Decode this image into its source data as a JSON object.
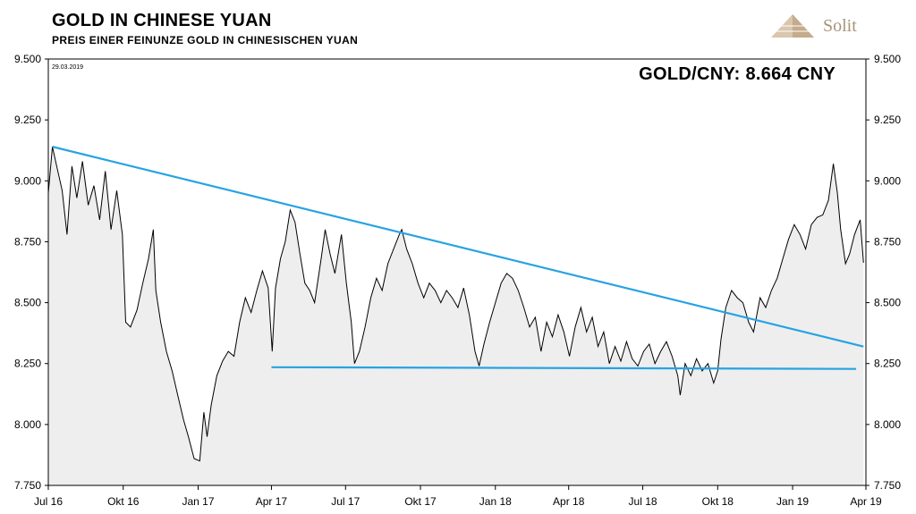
{
  "header": {
    "title": "GOLD IN CHINESE YUAN",
    "subtitle": "PREIS  EINER  FEINUNZE  GOLD IN CHINESISCHEN  YUAN",
    "logo_text": "Solit"
  },
  "colors": {
    "price_line": "#000000",
    "area_fill": "#eeeeee",
    "trend_line": "#27a3e2",
    "logo": "#a8937a"
  },
  "chart_data": {
    "type": "line",
    "date_label": "29.03.2019",
    "annotation": "GOLD/CNY: 8.664 CNY",
    "ylim": [
      7.75,
      9.5
    ],
    "yticks": [
      7.75,
      8.0,
      8.25,
      8.5,
      8.75,
      9.0,
      9.25,
      9.5
    ],
    "ytick_labels": [
      "7.750",
      "8.000",
      "8.250",
      "8.500",
      "8.750",
      "9.000",
      "9.250",
      "9.500"
    ],
    "xticks": [
      "Jul 16",
      "Okt 16",
      "Jan 17",
      "Apr 17",
      "Jul 17",
      "Okt 17",
      "Jan 18",
      "Apr 18",
      "Jul 18",
      "Okt 18",
      "Jan 19",
      "Apr 19"
    ],
    "xlim": [
      "2016-07-01",
      "2019-04-01"
    ],
    "series": [
      {
        "values": [
          [
            "2016-07-01",
            8.95
          ],
          [
            "2016-07-06",
            9.14
          ],
          [
            "2016-07-12",
            9.05
          ],
          [
            "2016-07-18",
            8.96
          ],
          [
            "2016-07-24",
            8.78
          ],
          [
            "2016-07-30",
            9.06
          ],
          [
            "2016-08-05",
            8.93
          ],
          [
            "2016-08-12",
            9.08
          ],
          [
            "2016-08-19",
            8.9
          ],
          [
            "2016-08-26",
            8.98
          ],
          [
            "2016-09-02",
            8.84
          ],
          [
            "2016-09-09",
            9.04
          ],
          [
            "2016-09-16",
            8.8
          ],
          [
            "2016-09-23",
            8.96
          ],
          [
            "2016-09-30",
            8.78
          ],
          [
            "2016-10-04",
            8.42
          ],
          [
            "2016-10-10",
            8.4
          ],
          [
            "2016-10-18",
            8.47
          ],
          [
            "2016-10-25",
            8.58
          ],
          [
            "2016-11-01",
            8.68
          ],
          [
            "2016-11-07",
            8.8
          ],
          [
            "2016-11-10",
            8.55
          ],
          [
            "2016-11-16",
            8.42
          ],
          [
            "2016-11-23",
            8.3
          ],
          [
            "2016-11-30",
            8.22
          ],
          [
            "2016-12-07",
            8.12
          ],
          [
            "2016-12-14",
            8.02
          ],
          [
            "2016-12-20",
            7.95
          ],
          [
            "2016-12-27",
            7.86
          ],
          [
            "2017-01-03",
            7.85
          ],
          [
            "2017-01-08",
            8.05
          ],
          [
            "2017-01-12",
            7.95
          ],
          [
            "2017-01-17",
            8.08
          ],
          [
            "2017-01-24",
            8.2
          ],
          [
            "2017-01-31",
            8.26
          ],
          [
            "2017-02-07",
            8.3
          ],
          [
            "2017-02-14",
            8.28
          ],
          [
            "2017-02-21",
            8.42
          ],
          [
            "2017-02-28",
            8.52
          ],
          [
            "2017-03-07",
            8.46
          ],
          [
            "2017-03-14",
            8.55
          ],
          [
            "2017-03-21",
            8.63
          ],
          [
            "2017-03-28",
            8.56
          ],
          [
            "2017-04-02",
            8.3
          ],
          [
            "2017-04-06",
            8.56
          ],
          [
            "2017-04-12",
            8.68
          ],
          [
            "2017-04-18",
            8.75
          ],
          [
            "2017-04-24",
            8.88
          ],
          [
            "2017-04-30",
            8.83
          ],
          [
            "2017-05-06",
            8.7
          ],
          [
            "2017-05-12",
            8.58
          ],
          [
            "2017-05-18",
            8.55
          ],
          [
            "2017-05-24",
            8.5
          ],
          [
            "2017-06-01",
            8.68
          ],
          [
            "2017-06-06",
            8.8
          ],
          [
            "2017-06-12",
            8.7
          ],
          [
            "2017-06-18",
            8.62
          ],
          [
            "2017-06-26",
            8.78
          ],
          [
            "2017-07-02",
            8.58
          ],
          [
            "2017-07-08",
            8.42
          ],
          [
            "2017-07-12",
            8.25
          ],
          [
            "2017-07-18",
            8.3
          ],
          [
            "2017-07-25",
            8.4
          ],
          [
            "2017-08-01",
            8.52
          ],
          [
            "2017-08-08",
            8.6
          ],
          [
            "2017-08-15",
            8.55
          ],
          [
            "2017-08-22",
            8.66
          ],
          [
            "2017-08-29",
            8.72
          ],
          [
            "2017-09-05",
            8.78
          ],
          [
            "2017-09-08",
            8.8
          ],
          [
            "2017-09-14",
            8.72
          ],
          [
            "2017-09-21",
            8.66
          ],
          [
            "2017-09-28",
            8.58
          ],
          [
            "2017-10-05",
            8.52
          ],
          [
            "2017-10-12",
            8.58
          ],
          [
            "2017-10-19",
            8.55
          ],
          [
            "2017-10-26",
            8.5
          ],
          [
            "2017-11-02",
            8.55
          ],
          [
            "2017-11-09",
            8.52
          ],
          [
            "2017-11-16",
            8.48
          ],
          [
            "2017-11-23",
            8.56
          ],
          [
            "2017-11-30",
            8.45
          ],
          [
            "2017-12-07",
            8.3
          ],
          [
            "2017-12-12",
            8.24
          ],
          [
            "2017-12-18",
            8.33
          ],
          [
            "2017-12-25",
            8.42
          ],
          [
            "2018-01-01",
            8.5
          ],
          [
            "2018-01-08",
            8.58
          ],
          [
            "2018-01-15",
            8.62
          ],
          [
            "2018-01-22",
            8.6
          ],
          [
            "2018-01-29",
            8.55
          ],
          [
            "2018-02-05",
            8.48
          ],
          [
            "2018-02-12",
            8.4
          ],
          [
            "2018-02-19",
            8.44
          ],
          [
            "2018-02-26",
            8.3
          ],
          [
            "2018-03-05",
            8.42
          ],
          [
            "2018-03-12",
            8.36
          ],
          [
            "2018-03-19",
            8.45
          ],
          [
            "2018-03-26",
            8.38
          ],
          [
            "2018-04-02",
            8.28
          ],
          [
            "2018-04-09",
            8.4
          ],
          [
            "2018-04-16",
            8.48
          ],
          [
            "2018-04-23",
            8.38
          ],
          [
            "2018-04-30",
            8.44
          ],
          [
            "2018-05-07",
            8.32
          ],
          [
            "2018-05-14",
            8.38
          ],
          [
            "2018-05-21",
            8.25
          ],
          [
            "2018-05-28",
            8.32
          ],
          [
            "2018-06-04",
            8.26
          ],
          [
            "2018-06-11",
            8.34
          ],
          [
            "2018-06-18",
            8.27
          ],
          [
            "2018-06-25",
            8.24
          ],
          [
            "2018-07-02",
            8.3
          ],
          [
            "2018-07-09",
            8.33
          ],
          [
            "2018-07-16",
            8.25
          ],
          [
            "2018-07-23",
            8.3
          ],
          [
            "2018-07-30",
            8.34
          ],
          [
            "2018-08-06",
            8.28
          ],
          [
            "2018-08-13",
            8.2
          ],
          [
            "2018-08-16",
            8.12
          ],
          [
            "2018-08-22",
            8.25
          ],
          [
            "2018-08-29",
            8.2
          ],
          [
            "2018-09-05",
            8.27
          ],
          [
            "2018-09-12",
            8.22
          ],
          [
            "2018-09-19",
            8.25
          ],
          [
            "2018-09-26",
            8.17
          ],
          [
            "2018-10-01",
            8.22
          ],
          [
            "2018-10-05",
            8.35
          ],
          [
            "2018-10-11",
            8.48
          ],
          [
            "2018-10-18",
            8.55
          ],
          [
            "2018-10-25",
            8.52
          ],
          [
            "2018-11-01",
            8.5
          ],
          [
            "2018-11-08",
            8.42
          ],
          [
            "2018-11-14",
            8.38
          ],
          [
            "2018-11-22",
            8.52
          ],
          [
            "2018-11-29",
            8.48
          ],
          [
            "2018-12-06",
            8.55
          ],
          [
            "2018-12-13",
            8.6
          ],
          [
            "2018-12-20",
            8.68
          ],
          [
            "2018-12-27",
            8.76
          ],
          [
            "2019-01-03",
            8.82
          ],
          [
            "2019-01-10",
            8.78
          ],
          [
            "2019-01-17",
            8.72
          ],
          [
            "2019-01-24",
            8.82
          ],
          [
            "2019-01-31",
            8.85
          ],
          [
            "2019-02-07",
            8.86
          ],
          [
            "2019-02-14",
            8.92
          ],
          [
            "2019-02-20",
            9.07
          ],
          [
            "2019-02-25",
            8.95
          ],
          [
            "2019-03-01",
            8.8
          ],
          [
            "2019-03-07",
            8.66
          ],
          [
            "2019-03-12",
            8.7
          ],
          [
            "2019-03-18",
            8.78
          ],
          [
            "2019-03-25",
            8.84
          ],
          [
            "2019-03-29",
            8.664
          ]
        ]
      }
    ],
    "trendlines": [
      {
        "points": [
          [
            "2016-07-06",
            9.14
          ],
          [
            "2019-03-29",
            8.32
          ]
        ]
      },
      {
        "points": [
          [
            "2017-04-01",
            8.235
          ],
          [
            "2019-03-20",
            8.228
          ]
        ]
      }
    ],
    "grid": false,
    "legend": "none"
  }
}
